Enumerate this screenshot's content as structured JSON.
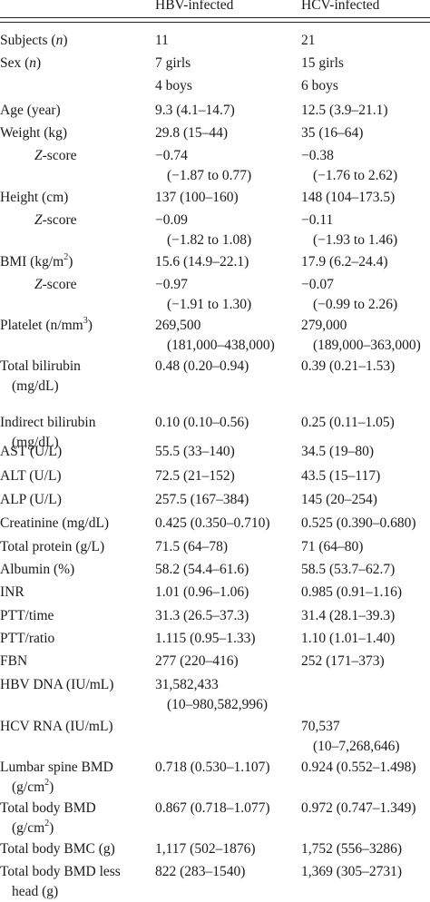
{
  "header": {
    "col_hbv": "HBV-infected",
    "col_hcv": "HCV-infected"
  },
  "rows": [
    {
      "name": "subjects",
      "label_pre": "Subjects (",
      "label_italic": "n",
      "label_post": ")",
      "hbv": [
        "11"
      ],
      "hcv": [
        "21"
      ]
    },
    {
      "name": "sex",
      "label_pre": "Sex (",
      "label_italic": "n",
      "label_post": ")",
      "hbv": [
        "7 girls"
      ],
      "hcv": [
        "15 girls"
      ]
    },
    {
      "name": "sex-boys",
      "label_pre": "",
      "hbv": [
        "4 boys"
      ],
      "hcv": [
        "6 boys"
      ]
    },
    {
      "name": "age",
      "label_pre": "Age (year)",
      "hbv": [
        "9.3 (4.1–14.7)"
      ],
      "hcv": [
        "12.5 (3.9–21.1)"
      ]
    },
    {
      "name": "weight",
      "label_pre": "Weight (kg)",
      "hbv": [
        "29.8 (15–44)"
      ],
      "hcv": [
        "35 (16–64)"
      ]
    },
    {
      "name": "weight-zscore",
      "label_italic": "Z",
      "label_post": "-score",
      "sub": true,
      "hbv": [
        "−0.74",
        "(−1.87 to 0.77)"
      ],
      "hcv": [
        "−0.38",
        "(−1.76 to 2.62)"
      ]
    },
    {
      "name": "height",
      "label_pre": "Height (cm)",
      "hbv": [
        "137 (100–160)"
      ],
      "hcv": [
        "148 (104–173.5)"
      ]
    },
    {
      "name": "height-zscore",
      "label_italic": "Z",
      "label_post": "-score",
      "sub": true,
      "hbv": [
        "−0.09",
        "(−1.82 to 1.08)"
      ],
      "hcv": [
        "−0.11",
        "(−1.93 to 1.46)"
      ]
    },
    {
      "name": "bmi",
      "label_pre": "BMI (kg/m",
      "label_sup": "2",
      "label_post": ")",
      "hbv": [
        "15.6 (14.9–22.1)"
      ],
      "hcv": [
        "17.9 (6.2–24.4)"
      ]
    },
    {
      "name": "bmi-zscore",
      "label_italic": "Z",
      "label_post": "-score",
      "sub": true,
      "hbv": [
        "−0.97",
        "(−1.91 to 1.30)"
      ],
      "hcv": [
        "−0.07",
        "(−0.99 to 2.26)"
      ]
    },
    {
      "name": "platelet",
      "label_pre": "Platelet (n/mm",
      "label_sup": "3",
      "label_post": ")",
      "hbv": [
        "269,500",
        "(181,000–438,000)"
      ],
      "hcv": [
        "279,000",
        "(189,000–363,000)"
      ]
    },
    {
      "name": "total-bilirubin",
      "label_pre": "Total bilirubin",
      "label_line2": "(mg/dL)",
      "hbv": [
        "0.48 (0.20–0.94)"
      ],
      "hcv": [
        "0.39 (0.21–1.53)"
      ]
    },
    {
      "name": "indirect-bilirubin",
      "label_pre": "Indirect bilirubin",
      "label_line2": "(mg/dL)",
      "hbv": [
        "0.10 (0.10–0.56)"
      ],
      "hcv": [
        "0.25 (0.11–1.05)"
      ]
    },
    {
      "name": "ast",
      "label_pre": "AST (U/L)",
      "hbv": [
        "55.5 (33–140)"
      ],
      "hcv": [
        "34.5 (19–80)"
      ]
    },
    {
      "name": "alt",
      "label_pre": "ALT (U/L)",
      "hbv": [
        "72.5 (21–152)"
      ],
      "hcv": [
        "43.5 (15–117)"
      ]
    },
    {
      "name": "alp",
      "label_pre": "ALP (U/L)",
      "hbv": [
        "257.5 (167–384)"
      ],
      "hcv": [
        "145 (20–254)"
      ]
    },
    {
      "name": "creatinine",
      "label_pre": "Creatinine (mg/dL)",
      "hbv": [
        "0.425 (0.350–0.710)"
      ],
      "hcv": [
        "0.525 (0.390–0.680)"
      ]
    },
    {
      "name": "total-protein",
      "label_pre": "Total protein (g/L)",
      "hbv": [
        "71.5 (64–78)"
      ],
      "hcv": [
        "71 (64–80)"
      ]
    },
    {
      "name": "albumin",
      "label_pre": "Albumin (%)",
      "hbv": [
        "58.2 (54.4–61.6)"
      ],
      "hcv": [
        "58.5 (53.7–62.7)"
      ]
    },
    {
      "name": "inr",
      "label_pre": "INR",
      "hbv": [
        "1.01 (0.96–1.06)"
      ],
      "hcv": [
        "0.985 (0.91–1.16)"
      ]
    },
    {
      "name": "ptt-time",
      "label_pre": "PTT/time",
      "hbv": [
        "31.3 (26.5–37.3)"
      ],
      "hcv": [
        "31.4 (28.1–39.3)"
      ]
    },
    {
      "name": "ptt-ratio",
      "label_pre": "PTT/ratio",
      "hbv": [
        "1.115 (0.95–1.33)"
      ],
      "hcv": [
        "1.10 (1.01–1.40)"
      ]
    },
    {
      "name": "fbn",
      "label_pre": "FBN",
      "hbv": [
        "277 (220–416)"
      ],
      "hcv": [
        "252 (171–373)"
      ]
    },
    {
      "name": "hbv-dna",
      "label_pre": "HBV DNA (IU/mL)",
      "hbv": [
        "31,582,433",
        "(10–980,582,996)"
      ],
      "hcv": []
    },
    {
      "name": "hcv-rna",
      "label_pre": "HCV RNA (IU/mL)",
      "hbv": [],
      "hcv": [
        "70,537",
        "(10–7,268,646)"
      ]
    },
    {
      "name": "lumbar-spine-bmd",
      "label_pre": "Lumbar spine BMD",
      "label_line2_pre": "(g/cm",
      "label_line2_sup": "2",
      "label_line2_post": ")",
      "hbv": [
        "0.718 (0.530–1.107)"
      ],
      "hcv": [
        "0.924 (0.552–1.498)"
      ]
    },
    {
      "name": "total-body-bmd",
      "label_pre": "Total body BMD",
      "label_line2_pre": "(g/cm",
      "label_line2_sup": "2",
      "label_line2_post": ")",
      "hbv": [
        "0.867 (0.718–1.077)"
      ],
      "hcv": [
        "0.972 (0.747–1.349)"
      ]
    },
    {
      "name": "total-body-bmc",
      "label_pre": "Total body BMC (g)",
      "hbv": [
        "1,117 (502–1876)"
      ],
      "hcv": [
        "1,752 (556–3286)"
      ]
    },
    {
      "name": "total-body-bmd-less-head",
      "label_pre": "Total body BMD less",
      "label_line2": "head (g)",
      "hbv": [
        "822 (283–1540)"
      ],
      "hcv": [
        "1,369 (305–2731)"
      ]
    }
  ]
}
